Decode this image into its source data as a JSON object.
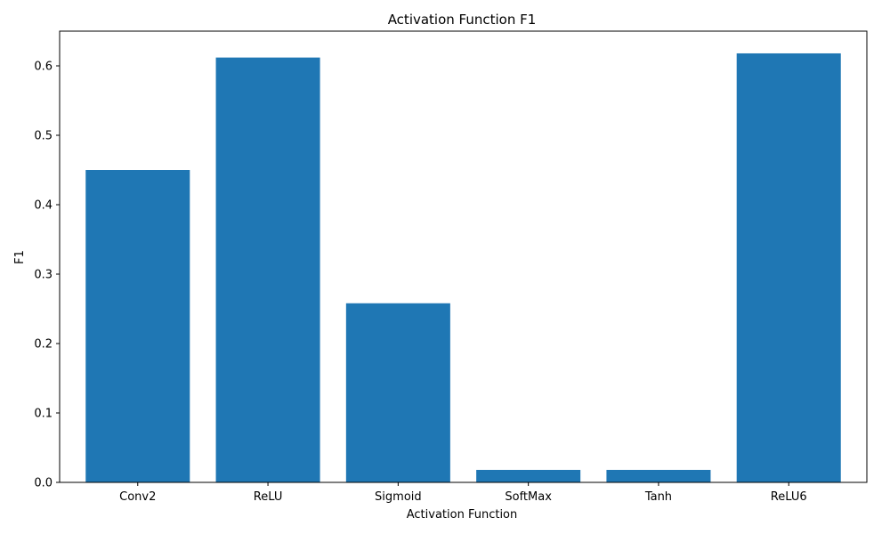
{
  "chart_data": {
    "type": "bar",
    "title": "Activation Function F1",
    "xlabel": "Activation Function",
    "ylabel": "F1",
    "categories": [
      "Conv2",
      "ReLU",
      "Sigmoid",
      "SoftMax",
      "Tanh",
      "ReLU6"
    ],
    "values": [
      0.45,
      0.612,
      0.258,
      0.018,
      0.018,
      0.618
    ],
    "ylim": [
      0,
      0.65
    ],
    "yticks": [
      "0.0",
      "0.1",
      "0.2",
      "0.3",
      "0.4",
      "0.5",
      "0.6"
    ],
    "grid": false,
    "legend": "none",
    "bar_color": "#1f77b4"
  }
}
